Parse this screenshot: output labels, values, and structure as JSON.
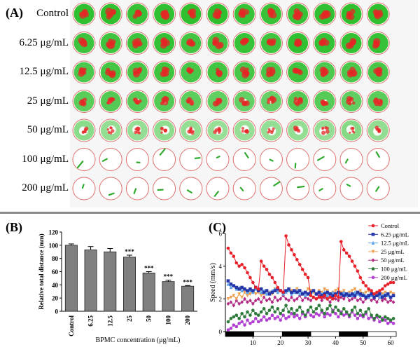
{
  "panel_a": {
    "label": "(A)",
    "rows": [
      {
        "label": "Control",
        "activity": 1.0
      },
      {
        "label": "6.25 μg/mL",
        "activity": 0.95
      },
      {
        "label": "12.5 μg/mL",
        "activity": 0.9
      },
      {
        "label": "25 μg/mL",
        "activity": 0.78
      },
      {
        "label": "50 μg/mL",
        "activity": 0.55
      },
      {
        "label": "100 μg/mL",
        "activity": 0.08
      },
      {
        "label": "200 μg/mL",
        "activity": 0.05
      }
    ],
    "wells_per_row": 12
  },
  "panel_b": {
    "label": "(B)",
    "chart_data": {
      "type": "bar",
      "ylabel": "Relative total distance (mm)",
      "xlabel": "BPMC concentration (μg/mL)",
      "categories": [
        "Control",
        "6.25",
        "12.5",
        "25",
        "50",
        "100",
        "200"
      ],
      "values": [
        100,
        93,
        90,
        82,
        58,
        45,
        38
      ],
      "errors": [
        2,
        5,
        5,
        3,
        2,
        2,
        1
      ],
      "annotations": [
        "",
        "",
        "",
        "***",
        "***",
        "***",
        "***"
      ],
      "ylim": [
        0,
        120
      ],
      "yticks": [
        0,
        20,
        40,
        60,
        80,
        100,
        120
      ],
      "bar_color": "#808080"
    }
  },
  "panel_c": {
    "label": "(C)",
    "chart_data": {
      "type": "line",
      "ylabel": "Speed (mm/s)",
      "xlim": [
        0,
        62
      ],
      "ylim": [
        0,
        6
      ],
      "xticks": [
        10,
        20,
        30,
        40,
        50,
        60
      ],
      "yticks": [
        0,
        2,
        4,
        6
      ],
      "light_dark_bar": [
        "dark",
        "light",
        "dark",
        "light",
        "dark",
        "light"
      ],
      "series": [
        {
          "name": "Control",
          "color": "#e8202a",
          "marker": "circle",
          "values": [
            5.1,
            4.8,
            4.6,
            4.2,
            4.0,
            4.1,
            3.9,
            3.6,
            3.3,
            3.0,
            2.7,
            2.6,
            4.3,
            4.0,
            3.8,
            3.5,
            3.3,
            3.0,
            2.7,
            2.5,
            2.4,
            5.85,
            5.3,
            5.0,
            4.7,
            4.4,
            4.1,
            3.8,
            3.5,
            3.3,
            2.2,
            2.1,
            2.0,
            2.1,
            2.1,
            2.2,
            2.0,
            2.1,
            2.0,
            2.2,
            2.1,
            5.5,
            5.0,
            4.8,
            4.6,
            4.3,
            4.0,
            3.7,
            3.3,
            3.0,
            2.8,
            2.6,
            2.5,
            2.3,
            2.4,
            2.5,
            2.6,
            2.8,
            2.9,
            3.0,
            3.0
          ]
        },
        {
          "name": "6.25 μg/mL",
          "color": "#2436a8",
          "marker": "square",
          "values": [
            3.1,
            2.9,
            2.8,
            2.7,
            2.6,
            2.7,
            2.6,
            2.5,
            2.6,
            2.5,
            2.7,
            2.5,
            2.6,
            2.4,
            2.5,
            2.3,
            2.4,
            2.5,
            2.6,
            2.5,
            2.4,
            2.5,
            2.6,
            2.4,
            2.5,
            2.4,
            2.5,
            2.3,
            2.4,
            2.3,
            2.4,
            2.5,
            2.3,
            2.4,
            2.2,
            2.3,
            2.4,
            2.3,
            2.2,
            2.3,
            2.4,
            2.3,
            2.2,
            2.3,
            2.2,
            2.3,
            2.2,
            2.4,
            2.3,
            2.2,
            2.1,
            2.2,
            2.3,
            2.1,
            2.2,
            2.3,
            2.1,
            2.2,
            2.3,
            2.1,
            2.2
          ]
        },
        {
          "name": "12.5 μg/mL",
          "color": "#5aa0ec",
          "marker": "triangle",
          "values": [
            2.9,
            2.7,
            2.8,
            2.6,
            2.7,
            2.5,
            2.6,
            2.4,
            2.5,
            2.4,
            2.6,
            2.5,
            2.4,
            2.5,
            2.3,
            2.4,
            2.5,
            2.6,
            2.4,
            2.5,
            2.3,
            2.4,
            2.5,
            2.3,
            2.4,
            2.5,
            2.3,
            2.4,
            2.2,
            2.3,
            2.4,
            2.5,
            2.3,
            2.4,
            2.3,
            2.4,
            2.2,
            2.3,
            2.4,
            2.3,
            2.2,
            2.3,
            2.4,
            2.2,
            2.3,
            2.2,
            2.4,
            2.3,
            2.2,
            2.3,
            2.2,
            2.1,
            2.2,
            2.3,
            2.2,
            2.1,
            2.2,
            2.3,
            2.2,
            2.1,
            2.2
          ]
        },
        {
          "name": "25 μg/mL",
          "color": "#f0a050",
          "marker": "triangle-down",
          "values": [
            2.0,
            2.1,
            2.2,
            2.0,
            2.3,
            2.1,
            2.4,
            2.2,
            2.3,
            2.5,
            2.3,
            2.4,
            2.2,
            2.3,
            2.5,
            2.4,
            2.3,
            2.6,
            2.4,
            2.5,
            2.3,
            2.4,
            2.6,
            2.5,
            2.4,
            2.6,
            2.5,
            2.3,
            2.4,
            2.6,
            2.5,
            2.4,
            2.3,
            2.5,
            2.4,
            2.6,
            2.5,
            2.3,
            2.4,
            2.5,
            2.6,
            2.4,
            2.5,
            2.3,
            2.4,
            2.5,
            2.6,
            2.4,
            2.5,
            2.3,
            2.4,
            2.5,
            2.4,
            2.3,
            2.4,
            2.5,
            2.3,
            2.4,
            2.3,
            2.4,
            2.3
          ]
        },
        {
          "name": "50 μg/mL",
          "color": "#b22a84",
          "marker": "diamond",
          "values": [
            1.7,
            1.8,
            1.6,
            1.9,
            1.7,
            1.8,
            2.0,
            1.8,
            1.9,
            1.7,
            1.9,
            2.0,
            1.8,
            2.1,
            1.9,
            2.0,
            1.8,
            2.1,
            1.9,
            2.0,
            2.2,
            2.0,
            1.9,
            2.1,
            1.9,
            2.0,
            2.2,
            1.9,
            2.1,
            2.0,
            1.9,
            2.1,
            2.0,
            2.2,
            1.9,
            2.1,
            2.0,
            1.8,
            2.1,
            2.0,
            1.9,
            2.1,
            2.0,
            2.2,
            1.9,
            2.0,
            2.1,
            1.9,
            2.0,
            1.8,
            2.0,
            2.1,
            1.9,
            2.0,
            1.8,
            2.1,
            1.9,
            2.0,
            1.8,
            1.9,
            1.8
          ]
        },
        {
          "name": "100 μg/mL",
          "color": "#2e7a3a",
          "marker": "circle",
          "values": [
            0.6,
            0.8,
            0.9,
            1.0,
            0.8,
            1.1,
            0.9,
            1.2,
            1.0,
            1.3,
            1.1,
            1.0,
            1.2,
            1.4,
            1.1,
            1.3,
            1.5,
            1.2,
            1.4,
            1.1,
            1.3,
            1.6,
            1.2,
            1.4,
            1.1,
            1.3,
            1.5,
            1.2,
            1.0,
            1.3,
            1.5,
            1.2,
            1.4,
            1.6,
            1.3,
            1.1,
            1.4,
            1.6,
            1.2,
            1.5,
            1.3,
            1.1,
            1.4,
            1.2,
            1.0,
            1.3,
            1.5,
            1.1,
            1.3,
            1.0,
            1.2,
            1.4,
            1.0,
            0.8,
            1.0,
            0.9,
            0.7,
            0.9,
            0.8,
            0.7,
            0.8
          ]
        },
        {
          "name": "200 μg/mL",
          "color": "#b040d0",
          "marker": "circle",
          "values": [
            0.1,
            0.2,
            0.4,
            0.3,
            0.5,
            0.6,
            0.4,
            0.7,
            0.5,
            0.6,
            0.8,
            0.6,
            0.7,
            0.9,
            0.7,
            0.8,
            1.0,
            0.8,
            0.9,
            0.7,
            1.0,
            0.8,
            0.9,
            1.1,
            0.9,
            1.0,
            0.8,
            1.1,
            0.9,
            1.2,
            1.0,
            0.9,
            1.1,
            1.0,
            1.2,
            0.9,
            1.1,
            1.0,
            1.3,
            1.1,
            0.9,
            1.2,
            1.0,
            1.1,
            0.9,
            1.2,
            1.0,
            0.8,
            1.0,
            0.9,
            1.1,
            0.8,
            0.9,
            0.7,
            0.9,
            0.6,
            0.8,
            0.7,
            0.5,
            0.6,
            0.5
          ]
        }
      ]
    }
  }
}
